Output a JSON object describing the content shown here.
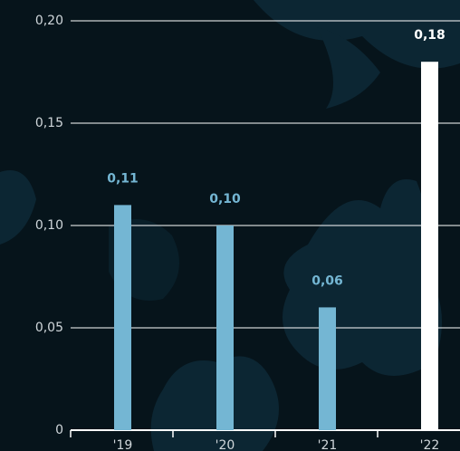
{
  "chart_data": {
    "type": "bar",
    "categories": [
      "'19",
      "'20",
      "'21",
      "'22"
    ],
    "values": [
      0.11,
      0.1,
      0.06,
      0.18
    ],
    "value_labels": [
      "0,11",
      "0,10",
      "0,06",
      "0,18"
    ],
    "colors": [
      "#74b6d3",
      "#74b6d3",
      "#74b6d3",
      "#ffffff"
    ],
    "ylim": [
      0,
      0.2
    ],
    "yticks": [
      0,
      {
        "value": 0.05,
        "label": "0,05"
      },
      {
        "value": 0.1,
        "label": "0,10"
      },
      {
        "value": 0.15,
        "label": "0,15"
      },
      {
        "value": 0.2,
        "label": "0,20"
      }
    ],
    "grid": true
  }
}
